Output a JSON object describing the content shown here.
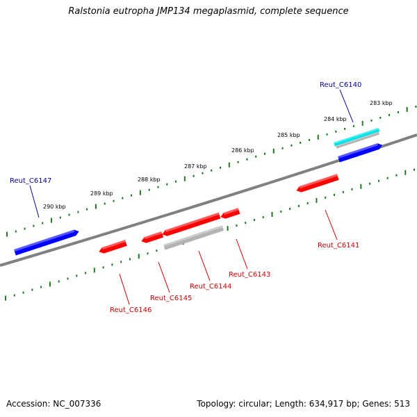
{
  "title": "Ralstonia eutropha JMP134 megaplasmid, complete sequence",
  "footer": {
    "accession": "Accession: NC_007336",
    "topology": "Topology: circular; Length: 634,917 bp; Genes: 513"
  },
  "colors": {
    "forward_gene": "#0000ff",
    "reverse_gene": "#ff0000",
    "highlight": "#00e5e5",
    "feature_bar": "#b3b3b3",
    "backbone": "#808080",
    "ticks": "#1a7a1a",
    "forward_label": "#000099",
    "reverse_label": "#cc0000"
  },
  "ticks": {
    "major_labels": [
      "283 kbp",
      "284 kbp",
      "285 kbp",
      "286 kbp",
      "287 kbp",
      "288 kbp",
      "289 kbp",
      "290 kbp"
    ]
  },
  "genes": [
    {
      "name": "Reut_C6140",
      "strand": "+"
    },
    {
      "name": "Reut_C6141",
      "strand": "-"
    },
    {
      "name": "Reut_C6143",
      "strand": "-"
    },
    {
      "name": "Reut_C6144",
      "strand": "-"
    },
    {
      "name": "Reut_C6145",
      "strand": "-"
    },
    {
      "name": "Reut_C6146",
      "strand": "-"
    },
    {
      "name": "Reut_C6147",
      "strand": "+"
    }
  ]
}
